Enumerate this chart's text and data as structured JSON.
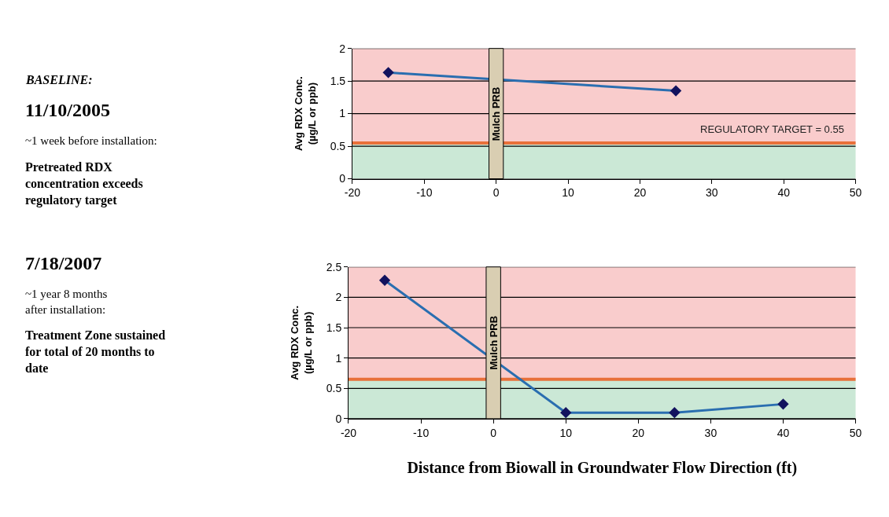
{
  "chart_data": [
    {
      "type": "line",
      "x": [
        -15,
        25
      ],
      "xlim": [
        -20,
        50
      ],
      "xticks": [
        -20,
        -10,
        0,
        10,
        20,
        30,
        40,
        50
      ],
      "ylim": [
        0,
        2
      ],
      "yticks": [
        0,
        0.5,
        1,
        1.5,
        2
      ],
      "ylabel": "Avg RDX Conc.\n(µg/L or ppb)",
      "grid": "y",
      "marker": "diamond",
      "series": [
        {
          "color": "#2a6eb0",
          "values": [
            1.63,
            1.35
          ]
        }
      ],
      "bands": [
        {
          "axis": "y",
          "from": 0.55,
          "to": 2,
          "color": "#f9cccc"
        },
        {
          "axis": "y",
          "from": 0,
          "to": 0.55,
          "color": "#cbe8d6"
        },
        {
          "axis": "x",
          "from": -1,
          "to": 1,
          "color": "#d9ceb2",
          "label": "Mulch PRB"
        }
      ],
      "ref_lines": [
        {
          "axis": "y",
          "value": 0.55,
          "color": "#e8703a",
          "label": "REGULATORY TARGET = 0.55"
        }
      ],
      "annotations": [
        "BASELINE:",
        "11/10/2005",
        "~1 week before installation:",
        "Pretreated RDX\nconcentration exceeds\nregulatory target"
      ]
    },
    {
      "type": "line",
      "x": [
        -15,
        10,
        25,
        40
      ],
      "xlim": [
        -20,
        50
      ],
      "xticks": [
        -20,
        -10,
        0,
        10,
        20,
        30,
        40,
        50
      ],
      "ylim": [
        0,
        2.5
      ],
      "yticks": [
        0,
        0.5,
        1,
        1.5,
        2,
        2.5
      ],
      "ylabel": "Avg RDX Conc.\n(µg/L or ppb)",
      "xlabel": "Distance from Biowall in Groundwater Flow Direction (ft)",
      "grid": "y",
      "marker": "diamond",
      "series": [
        {
          "color": "#2a6eb0",
          "values": [
            2.28,
            0.1,
            0.1,
            0.24
          ]
        }
      ],
      "bands": [
        {
          "axis": "y",
          "from": 0.65,
          "to": 2.5,
          "color": "#f9cccc"
        },
        {
          "axis": "y",
          "from": 0,
          "to": 0.65,
          "color": "#cbe8d6"
        },
        {
          "axis": "x",
          "from": -1,
          "to": 1,
          "color": "#d9ceb2",
          "label": "Mulch PRB"
        }
      ],
      "ref_lines": [
        {
          "axis": "y",
          "value": 0.65,
          "color": "#e8703a"
        }
      ],
      "annotations": [
        "7/18/2007",
        "~1 year 8 months\nafter installation:",
        "Treatment Zone sustained\nfor total of 20 months to\ndate"
      ]
    }
  ]
}
